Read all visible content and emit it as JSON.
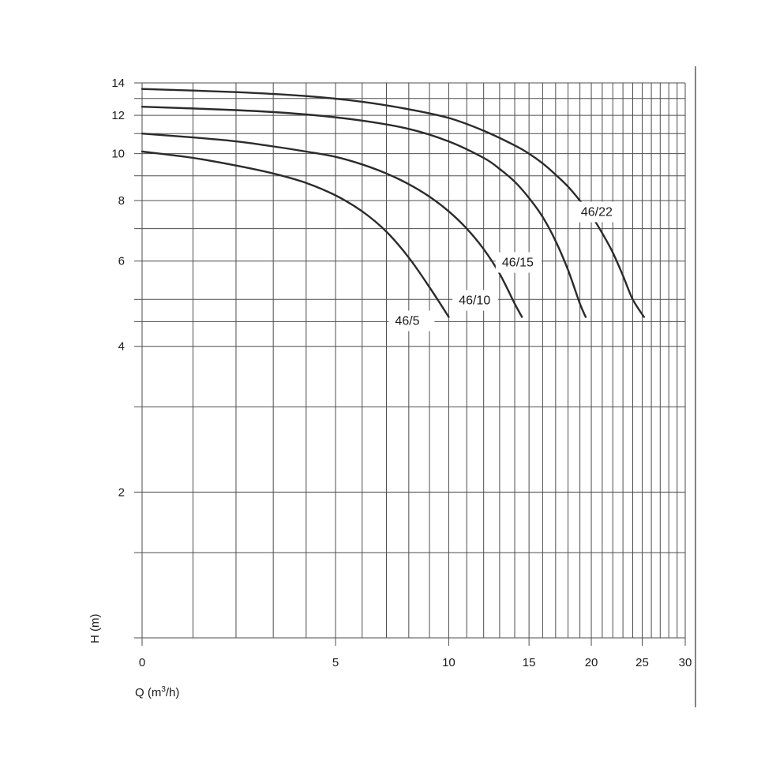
{
  "chart_data": {
    "type": "line",
    "xlabel": "Q (m",
    "xlabel_sup": "3",
    "xlabel_tail": "/h)",
    "ylabel": "H (m)",
    "x_scale": "log(Q+5)",
    "y_scale": "log",
    "xlim": [
      0,
      30
    ],
    "ylim": [
      1,
      14
    ],
    "x_ticks": [
      0,
      5,
      10,
      15,
      20,
      25,
      30
    ],
    "y_ticks": [
      2,
      4,
      6,
      8,
      10,
      12,
      14
    ],
    "x_grid": [
      0,
      1,
      2,
      3,
      4,
      5,
      6,
      7,
      8,
      9,
      10,
      11,
      12,
      13,
      14,
      15,
      16,
      17,
      18,
      19,
      20,
      21,
      22,
      23,
      24,
      25,
      26,
      27,
      28,
      29,
      30
    ],
    "y_grid": [
      1,
      1.5,
      2,
      3,
      4,
      4.5,
      5,
      6,
      7,
      8,
      9,
      10,
      11,
      12,
      13,
      14
    ],
    "grid": true,
    "series": [
      {
        "name": "46/5",
        "x": [
          0,
          1,
          2,
          3,
          4,
          5,
          6,
          7,
          8,
          9,
          10
        ],
        "y": [
          10.1,
          9.8,
          9.45,
          9.1,
          8.7,
          8.2,
          7.6,
          6.9,
          6.1,
          5.3,
          4.6
        ]
      },
      {
        "name": "46/10",
        "x": [
          0,
          1,
          2,
          3,
          4,
          5,
          6,
          7,
          8,
          9,
          10,
          11,
          12,
          13,
          14,
          14.5
        ],
        "y": [
          11.0,
          10.8,
          10.6,
          10.35,
          10.1,
          9.85,
          9.5,
          9.1,
          8.65,
          8.15,
          7.6,
          7.0,
          6.35,
          5.65,
          4.9,
          4.6
        ]
      },
      {
        "name": "46/15",
        "x": [
          0,
          2,
          4,
          6,
          8,
          10,
          12,
          13,
          14,
          15,
          16,
          17,
          18,
          19,
          19.5
        ],
        "y": [
          12.5,
          12.3,
          12.05,
          11.7,
          11.25,
          10.6,
          9.8,
          9.3,
          8.75,
          8.1,
          7.4,
          6.6,
          5.75,
          4.9,
          4.6
        ]
      },
      {
        "name": "46/22",
        "x": [
          0,
          2,
          4,
          6,
          8,
          10,
          12,
          14,
          15,
          16,
          17,
          18,
          19,
          20,
          21,
          22,
          23,
          24,
          25.2
        ],
        "y": [
          13.6,
          13.4,
          13.15,
          12.8,
          12.35,
          11.85,
          11.15,
          10.4,
          10.0,
          9.55,
          9.05,
          8.55,
          8.0,
          7.45,
          6.85,
          6.25,
          5.6,
          5.0,
          4.6
        ]
      }
    ]
  }
}
